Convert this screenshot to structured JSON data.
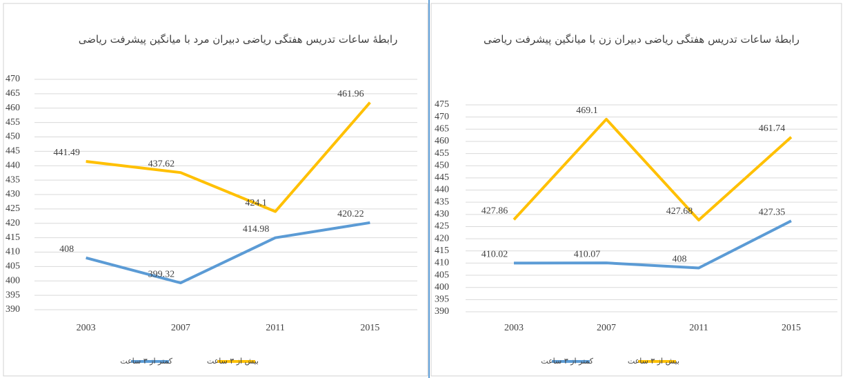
{
  "chart_data": [
    {
      "type": "line",
      "title": "رابطهٔ ساعات تدریس هفتگی ریاضی دبیران مرد با میانگین پیشرفت ریاضی",
      "categories": [
        "2003",
        "2007",
        "2011",
        "2015"
      ],
      "series": [
        {
          "name": "کمتر از ۳ ساعت",
          "color": "#5b9bd5",
          "values": [
            408,
            399.32,
            414.98,
            420.22
          ]
        },
        {
          "name": "بیش از ۳ ساعت",
          "color": "#ffc000",
          "values": [
            441.49,
            437.62,
            424.1,
            461.96
          ]
        }
      ],
      "ylim": [
        390,
        470
      ],
      "yticks": [
        390,
        395,
        400,
        405,
        410,
        415,
        420,
        425,
        430,
        435,
        440,
        445,
        450,
        455,
        460,
        465,
        470
      ],
      "grid": true
    },
    {
      "type": "line",
      "title": "رابطهٔ ساعات تدریس هفتگی ریاضی دبیران زن با میانگین پیشرفت ریاضی",
      "categories": [
        "2003",
        "2007",
        "2011",
        "2015"
      ],
      "series": [
        {
          "name": "کمتر از ۳ ساعت",
          "color": "#5b9bd5",
          "values": [
            410.02,
            410.07,
            408,
            427.35
          ]
        },
        {
          "name": "بیش از ۳ ساعت",
          "color": "#ffc000",
          "values": [
            427.86,
            469.1,
            427.68,
            461.74
          ]
        }
      ],
      "ylim": [
        390,
        475
      ],
      "yticks": [
        390,
        395,
        400,
        405,
        410,
        415,
        420,
        425,
        430,
        435,
        440,
        445,
        450,
        455,
        460,
        465,
        470,
        475
      ],
      "grid": true
    }
  ]
}
